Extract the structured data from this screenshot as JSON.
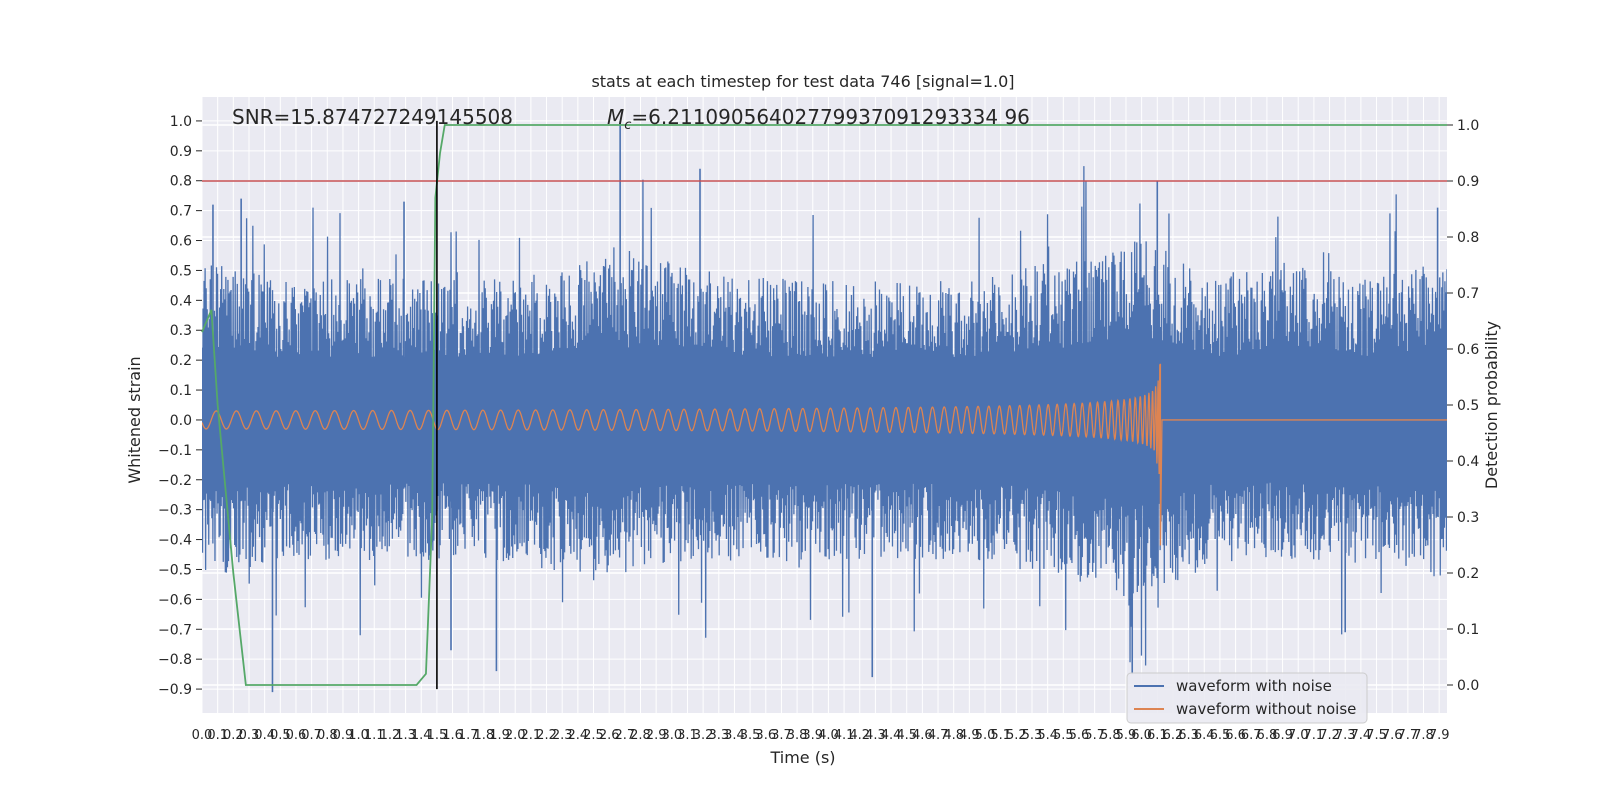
{
  "chart_data": {
    "type": "line",
    "title": "stats at each timestep for test data 746 [signal=1.0]",
    "xlabel": "Time (s)",
    "ylabel_left": "Whitened strain",
    "ylabel_right": "Detection probability",
    "xlim": [
      0.0,
      7.95
    ],
    "ylim_left": [
      -0.98,
      1.08
    ],
    "ylim_right": [
      -0.05,
      1.05
    ],
    "x_ticks": [
      "0.0",
      "0.1",
      "0.2",
      "0.3",
      "0.4",
      "0.5",
      "0.6",
      "0.7",
      "0.8",
      "0.9",
      "1.0",
      "1.1",
      "1.2",
      "1.3",
      "1.4",
      "1.5",
      "1.6",
      "1.7",
      "1.8",
      "1.9",
      "2.0",
      "2.1",
      "2.2",
      "2.3",
      "2.4",
      "2.5",
      "2.6",
      "2.7",
      "2.8",
      "2.9",
      "3.0",
      "3.1",
      "3.2",
      "3.3",
      "3.4",
      "3.5",
      "3.6",
      "3.7",
      "3.8",
      "3.9",
      "4.0",
      "4.1",
      "4.2",
      "4.3",
      "4.4",
      "4.5",
      "4.6",
      "4.7",
      "4.8",
      "4.9",
      "5.0",
      "5.1",
      "5.2",
      "5.3",
      "5.4",
      "5.5",
      "5.6",
      "5.7",
      "5.8",
      "5.9",
      "6.0",
      "6.1",
      "6.2",
      "6.3",
      "6.4",
      "6.5",
      "6.6",
      "6.7",
      "6.8",
      "6.9",
      "7.0",
      "7.1",
      "7.2",
      "7.3",
      "7.4",
      "7.5",
      "7.6",
      "7.7",
      "7.8",
      "7.9"
    ],
    "y_ticks_left": [
      "-0.9",
      "-0.8",
      "-0.7",
      "-0.6",
      "-0.5",
      "-0.4",
      "-0.3",
      "-0.2",
      "-0.1",
      "0.0",
      "0.1",
      "0.2",
      "0.3",
      "0.4",
      "0.5",
      "0.6",
      "0.7",
      "0.8",
      "0.9",
      "1.0"
    ],
    "y_ticks_right": [
      "0.0",
      "0.1",
      "0.2",
      "0.3",
      "0.4",
      "0.5",
      "0.6",
      "0.7",
      "0.8",
      "0.9",
      "1.0"
    ],
    "grid": true,
    "legend_position": "lower-right",
    "annotations": {
      "snr": "SNR=15.874727249145508",
      "mc_symbol": "M",
      "mc_sub": "c",
      "mc_value": "=6.21109056402779937091293334 96"
    },
    "series": [
      {
        "name": "waveform with noise",
        "axis": "left",
        "color": "#4c72b0",
        "envelope": {
          "x": [
            0.0,
            0.5,
            1.0,
            1.5,
            2.0,
            2.5,
            3.0,
            3.5,
            4.0,
            4.5,
            5.0,
            5.5,
            6.0,
            6.5,
            7.0,
            7.5,
            7.95
          ],
          "upper": [
            0.4,
            0.35,
            0.35,
            0.35,
            0.35,
            0.4,
            0.4,
            0.35,
            0.35,
            0.35,
            0.35,
            0.4,
            0.45,
            0.35,
            0.4,
            0.35,
            0.4
          ],
          "lower": [
            -0.4,
            -0.35,
            -0.35,
            -0.35,
            -0.35,
            -0.4,
            -0.35,
            -0.35,
            -0.35,
            -0.35,
            -0.35,
            -0.4,
            -0.45,
            -0.35,
            -0.35,
            -0.35,
            -0.4
          ]
        },
        "peaks": [
          [
            2.67,
            1.0
          ],
          [
            3.18,
            0.84
          ],
          [
            6.1,
            0.8
          ],
          [
            1.29,
            0.73
          ],
          [
            0.25,
            0.74
          ],
          [
            0.07,
            0.72
          ],
          [
            5.94,
            -0.85
          ],
          [
            0.45,
            -0.91
          ],
          [
            4.28,
            -0.86
          ],
          [
            1.59,
            -0.77
          ],
          [
            1.88,
            -0.84
          ],
          [
            7.3,
            -0.71
          ],
          [
            7.89,
            0.71
          ]
        ]
      },
      {
        "name": "waveform without noise",
        "axis": "left",
        "color": "#dd8452",
        "chirp": {
          "start": 0.0,
          "merger": 6.12,
          "end": 7.95,
          "amp_start": 0.03,
          "amp_peak": 0.34,
          "amp_peak_low": -0.42,
          "post_merger": 0.0
        }
      },
      {
        "name": "",
        "axis": "right",
        "color": "#55a868",
        "x": [
          0.0,
          0.06,
          0.1,
          0.2,
          0.28,
          0.5,
          1.0,
          1.37,
          1.43,
          1.47,
          1.49,
          1.52,
          1.55,
          2.0,
          3.0,
          4.0,
          5.0,
          6.0,
          7.0,
          7.95
        ],
        "y": [
          0.63,
          0.67,
          0.5,
          0.2,
          0.0,
          0.0,
          0.0,
          0.0,
          0.02,
          0.3,
          0.87,
          0.95,
          1.0,
          1.0,
          1.0,
          1.0,
          1.0,
          1.0,
          1.0,
          1.0
        ]
      }
    ],
    "threshold": {
      "axis": "right",
      "value": 0.9,
      "color": "#c44e52"
    },
    "vline": {
      "x": 1.5,
      "color": "#000000",
      "y_from": -0.9,
      "y_to": 1.0
    },
    "background": "#eaeaf2"
  },
  "legend": {
    "noise_label": "waveform with noise",
    "clean_label": "waveform without noise"
  }
}
